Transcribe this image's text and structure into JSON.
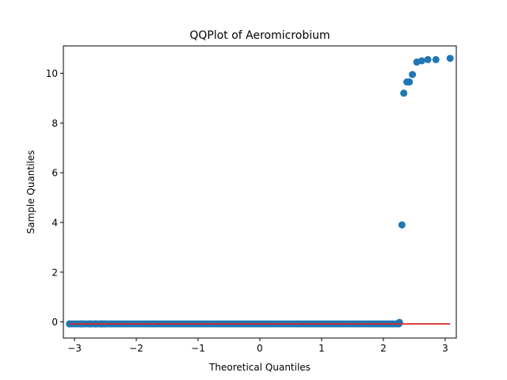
{
  "chart_data": {
    "type": "scatter",
    "title": "QQPlot of Aeromicrobium",
    "xlabel": "Theoretical Quantiles",
    "ylabel": "Sample Quantiles",
    "xlim": [
      -3.18,
      3.18
    ],
    "ylim": [
      -0.65,
      11.1
    ],
    "xticks": [
      -3,
      -2,
      -1,
      0,
      1,
      2,
      3
    ],
    "yticks": [
      0,
      2,
      4,
      6,
      8,
      10
    ],
    "grid": false,
    "legend": "none",
    "colors": {
      "points": "#1f77b4",
      "reference_line": "#d62728"
    },
    "reference_line": {
      "x": [
        -3.08,
        3.08
      ],
      "y": [
        -0.08,
        -0.08
      ]
    },
    "series": [
      {
        "marker": "circle",
        "baseline_points": {
          "x_start": -3.08,
          "x_end": 2.25,
          "y": -0.08,
          "count": 120
        },
        "x": [
          -3.08,
          -2.88,
          -2.75,
          -2.66,
          -2.58,
          -2.52,
          2.26,
          2.3,
          2.33,
          2.38,
          2.42,
          2.47,
          2.54,
          2.62,
          2.72,
          2.85,
          3.08
        ],
        "y": [
          -0.08,
          -0.08,
          -0.08,
          -0.08,
          -0.08,
          -0.08,
          -0.02,
          3.9,
          9.2,
          9.65,
          9.65,
          9.95,
          10.45,
          10.5,
          10.55,
          10.55,
          10.6
        ]
      }
    ]
  }
}
